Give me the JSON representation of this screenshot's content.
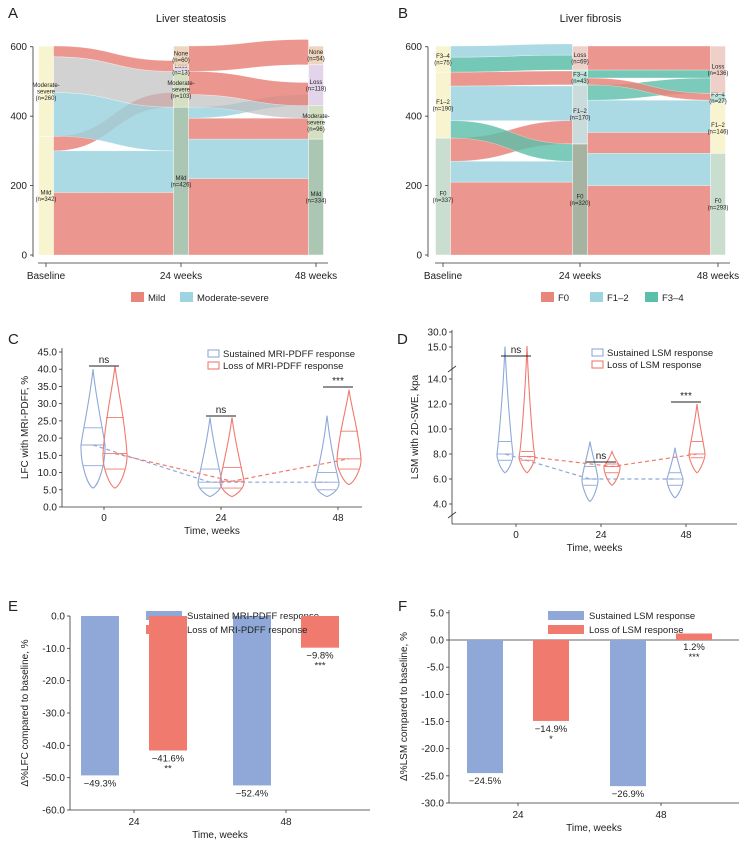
{
  "panels": {
    "A": "A",
    "B": "B",
    "C": "C",
    "D": "D",
    "E": "E",
    "F": "F"
  },
  "colors": {
    "salmon": "#e8867c",
    "cyan": "#9dd4e0",
    "teal": "#5cbfa9",
    "sustained": "#8fa8d8",
    "loss": "#f07a6e",
    "yellow": "#f6f1c0"
  },
  "chart_data": [
    {
      "panel": "A",
      "type": "sankey",
      "title": "Liver steatosis",
      "x_categories": [
        "Baseline",
        "24 weeks",
        "48 weeks"
      ],
      "y_ticks": [
        "0",
        "200",
        "400",
        "600"
      ],
      "ylim": [
        0,
        605
      ],
      "legend": [
        "Mild",
        "Moderate-severe"
      ],
      "nodes": {
        "baseline": [
          {
            "name": "Mild",
            "n": 342,
            "label": "Mild\n(n=342)"
          },
          {
            "name": "Moderate-severe",
            "n": 260,
            "label": "Moderate-\nsevere\n(n=260)"
          }
        ],
        "week24": [
          {
            "name": "Mild",
            "n": 426,
            "label": "Mild\n(n=426)"
          },
          {
            "name": "Moderate-severe",
            "n": 103,
            "label": "Moderate-\nsevere\n(n=103)"
          },
          {
            "name": "Loss",
            "n": 13,
            "label": "Loss\n(n=13)"
          },
          {
            "name": "None",
            "n": 60,
            "label": "None\n(n=60)"
          }
        ],
        "week48": [
          {
            "name": "Mild",
            "n": 334,
            "label": "Mild\n(n=334)"
          },
          {
            "name": "Moderate-severe",
            "n": 96,
            "label": "Moderate-\nsevere\n(n=96)"
          },
          {
            "name": "Loss",
            "n": 118,
            "label": "Loss\n(n=118)"
          },
          {
            "name": "None",
            "n": 54,
            "label": "None\n(n=54)"
          }
        ]
      }
    },
    {
      "panel": "B",
      "type": "sankey",
      "title": "Liver fibrosis",
      "x_categories": [
        "Baseline",
        "24 weeks",
        "48 weeks"
      ],
      "y_ticks": [
        "0",
        "200",
        "400",
        "600"
      ],
      "ylim": [
        0,
        605
      ],
      "legend": [
        "F0",
        "F1–2",
        "F3–4"
      ],
      "nodes": {
        "baseline": [
          {
            "name": "F0",
            "n": 337,
            "label": "F0\n(n=337)"
          },
          {
            "name": "F1–2",
            "n": 190,
            "label": "F1–2\n(n=190)"
          },
          {
            "name": "F3–4",
            "n": 75,
            "label": "F3–4\n(n=75)"
          }
        ],
        "week24": [
          {
            "name": "F0",
            "n": 320,
            "label": "F0\n(n=320)"
          },
          {
            "name": "F1–2",
            "n": 170,
            "label": "F1–2\n(n=170)"
          },
          {
            "name": "F3–4",
            "n": 43,
            "label": "F3–4\n(n=43)"
          },
          {
            "name": "Loss",
            "n": 69,
            "label": "Loss\n(n=69)"
          }
        ],
        "week48": [
          {
            "name": "F0",
            "n": 293,
            "label": "F0\n(n=293)"
          },
          {
            "name": "F1–2",
            "n": 146,
            "label": "F1–2\n(n=146)"
          },
          {
            "name": "F3–4",
            "n": 27,
            "label": "F3–4\n(n=27)"
          },
          {
            "name": "Loss",
            "n": 136,
            "label": "Loss\n(n=136)"
          }
        ]
      }
    },
    {
      "panel": "C",
      "type": "violin",
      "ylabel": "LFC with MRI-PDFF, %",
      "xlabel": "Time, weeks",
      "categories": [
        "0",
        "24",
        "48"
      ],
      "y_ticks": [
        "0.0",
        "5.0",
        "10.0",
        "15.0",
        "20.0",
        "25.0",
        "30.0",
        "35.0",
        "40.0",
        "45.0"
      ],
      "ylim": [
        0,
        45
      ],
      "legend": [
        "Sustained MRI-PDFF response",
        "Loss of MRI-PDFF response"
      ],
      "significance": [
        "ns",
        "ns",
        "***"
      ],
      "series": [
        {
          "name": "Sustained MRI-PDFF response",
          "medians": [
            18.0,
            7.2,
            7.2
          ],
          "q1": [
            12.0,
            5.5,
            5.0
          ],
          "q3": [
            23.0,
            11.0,
            10.0
          ],
          "min": [
            5.5,
            3.0,
            3.0
          ],
          "max": [
            40.0,
            26.0,
            26.5
          ]
        },
        {
          "name": "Loss of MRI-PDFF response",
          "medians": [
            15.5,
            7.5,
            14.0
          ],
          "q1": [
            11.0,
            5.5,
            11.0
          ],
          "q3": [
            26.0,
            11.5,
            22.0
          ],
          "min": [
            5.5,
            3.0,
            6.5
          ],
          "max": [
            41.0,
            26.0,
            34.0
          ]
        }
      ]
    },
    {
      "panel": "D",
      "type": "violin",
      "ylabel": "LSM with 2D-SWE, kpa",
      "xlabel": "Time, weeks",
      "categories": [
        "0",
        "24",
        "48"
      ],
      "y_ticks": [
        "4.0",
        "6.0",
        "8.0",
        "10.0",
        "12.0",
        "14.0",
        "15.0",
        "30.0"
      ],
      "ylim": [
        4,
        30
      ],
      "legend": [
        "Sustained LSM response",
        "Loss of LSM response"
      ],
      "significance": [
        "ns",
        "ns",
        "***"
      ],
      "series": [
        {
          "name": "Sustained LSM response",
          "medians": [
            8.0,
            6.0,
            6.0
          ],
          "q1": [
            7.5,
            5.5,
            5.5
          ],
          "q3": [
            9.0,
            7.0,
            6.5
          ],
          "min": [
            6.5,
            4.2,
            4.5
          ],
          "max": [
            15.5,
            9.0,
            8.5
          ]
        },
        {
          "name": "Loss of LSM response",
          "medians": [
            7.8,
            7.0,
            8.0
          ],
          "q1": [
            7.5,
            6.5,
            7.7
          ],
          "q3": [
            8.2,
            7.2,
            9.0
          ],
          "min": [
            6.5,
            5.5,
            6.5
          ],
          "max": [
            16.0,
            8.2,
            12.0
          ]
        }
      ]
    },
    {
      "panel": "E",
      "type": "bar",
      "ylabel": "Δ%LFC compared to baseline, %",
      "xlabel": "Time, weeks",
      "categories": [
        "24",
        "48"
      ],
      "y_ticks": [
        "0.0",
        "-10.0",
        "-20.0",
        "-30.0",
        "-40.0",
        "-50.0",
        "-60.0"
      ],
      "ylim": [
        -60,
        0
      ],
      "series": [
        {
          "name": "Sustained MRI-PDFF response",
          "values": [
            -49.3,
            -52.4
          ],
          "labels": [
            "−49.3%",
            "−52.4%"
          ],
          "stars": [
            "",
            ""
          ]
        },
        {
          "name": "Loss of MRI-PDFF response",
          "values": [
            -41.6,
            -9.8
          ],
          "labels": [
            "−41.6%",
            "−9.8%"
          ],
          "stars": [
            "**",
            "***"
          ]
        }
      ]
    },
    {
      "panel": "F",
      "type": "bar",
      "ylabel": "Δ%LSM compared to baseline, %",
      "xlabel": "Time, weeks",
      "categories": [
        "24",
        "48"
      ],
      "y_ticks": [
        "5.0",
        "0.0",
        "-5.0",
        "-10.0",
        "-15.0",
        "-20.0",
        "-25.0",
        "-30.0"
      ],
      "ylim": [
        -30,
        5
      ],
      "series": [
        {
          "name": "Sustained LSM response",
          "values": [
            -24.5,
            -26.9
          ],
          "labels": [
            "−24.5%",
            "−26.9%"
          ],
          "stars": [
            "",
            ""
          ]
        },
        {
          "name": "Loss of LSM response",
          "values": [
            -14.9,
            1.2
          ],
          "labels": [
            "−14.9%",
            "1.2%"
          ],
          "stars": [
            "*",
            "***"
          ]
        }
      ]
    }
  ]
}
